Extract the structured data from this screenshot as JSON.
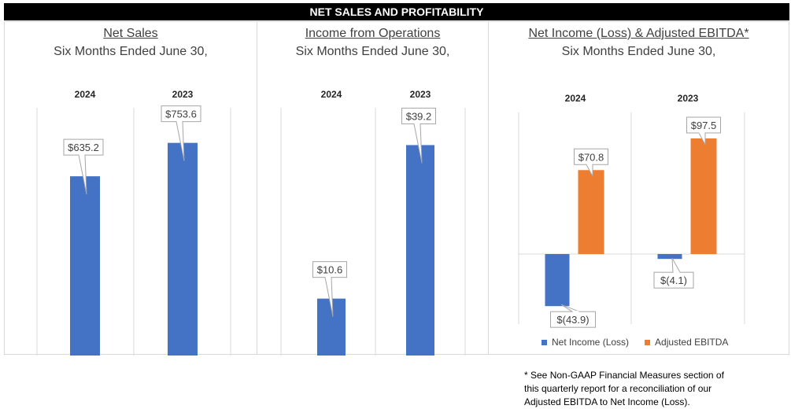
{
  "header": {
    "title": "NET SALES AND PROFITABILITY"
  },
  "colors": {
    "net_series": "#4472c4",
    "ebitda_series": "#ed7d31",
    "gridline": "#d9d9d9",
    "label_border": "#a6a6a6"
  },
  "panels": [
    {
      "title": "Net Sales",
      "subtitle": "Six Months Ended June 30,"
    },
    {
      "title": "Income from Operations",
      "subtitle": "Six Months Ended June 30,"
    },
    {
      "title": "Net Income (Loss) & Adjusted EBITDA*",
      "subtitle": "Six Months Ended June 30,"
    }
  ],
  "chart_data": [
    {
      "type": "bar",
      "title": "Net Sales",
      "subtitle": "Six Months Ended June 30,",
      "categories": [
        "2024",
        "2023"
      ],
      "values": [
        635.2,
        753.6
      ],
      "labels": [
        "$635.2",
        "$753.6"
      ],
      "ylim": [
        0,
        800
      ]
    },
    {
      "type": "bar",
      "title": "Income from Operations",
      "subtitle": "Six Months Ended June 30,",
      "categories": [
        "2024",
        "2023"
      ],
      "values": [
        10.6,
        39.2
      ],
      "labels": [
        "$10.6",
        "$39.2"
      ],
      "ylim": [
        0,
        40
      ]
    },
    {
      "type": "bar",
      "title": "Net Income (Loss) & Adjusted EBITDA*",
      "subtitle": "Six Months Ended June 30,",
      "categories": [
        "2024",
        "2023"
      ],
      "series": [
        {
          "name": "Net Income (Loss)",
          "values": [
            -43.9,
            -4.1
          ],
          "labels": [
            "$(43.9)",
            "$(4.1)"
          ]
        },
        {
          "name": "Adjusted EBITDA",
          "values": [
            70.8,
            97.5
          ],
          "labels": [
            "$70.8",
            "$97.5"
          ]
        }
      ],
      "ylim": [
        -55,
        110
      ],
      "legend": "bottom"
    }
  ],
  "footnote": [
    "* See Non-GAAP Financial Measures section of",
    "this quarterly report for a reconciliation of our",
    "Adjusted EBITDA to Net Income (Loss)."
  ]
}
